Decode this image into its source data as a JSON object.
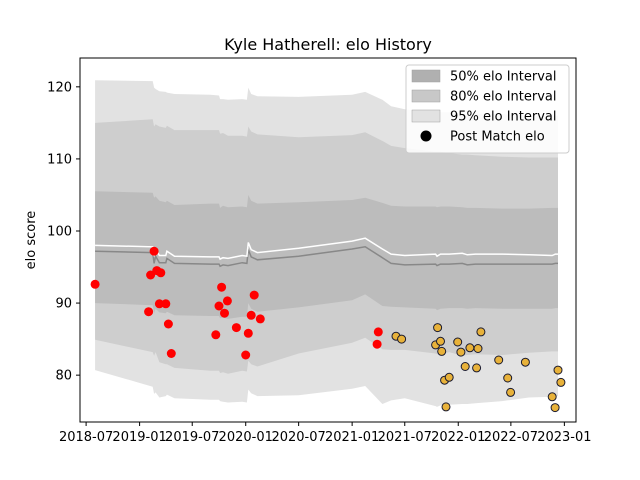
{
  "chart_data": {
    "type": "line",
    "title": "Kyle Hatherell: elo History",
    "xlabel": "",
    "ylabel": "elo score",
    "xlim": [
      "2018-06-10",
      "2023-02-10"
    ],
    "ylim": [
      73.5,
      124
    ],
    "x_ticks": [
      "2018-07",
      "2019-01",
      "2019-07",
      "2020-01",
      "2020-07",
      "2021-01",
      "2021-07",
      "2022-01",
      "2022-07",
      "2023-01"
    ],
    "y_ticks": [
      80,
      90,
      100,
      110,
      120
    ],
    "grid": false,
    "legend_position": "top-right",
    "legend": [
      {
        "label": "50% elo Interval",
        "swatch": "band",
        "color": "#b0b0b0"
      },
      {
        "label": "80% elo Interval",
        "swatch": "band",
        "color": "#c8c8c8"
      },
      {
        "label": "95% elo Interval",
        "swatch": "band",
        "color": "#e2e2e2"
      },
      {
        "label": "Post Match elo",
        "swatch": "dot",
        "color": "#000000"
      }
    ],
    "colors": {
      "band95": "#e2e2e2",
      "band80": "#cecece",
      "band50": "#bcbcbc",
      "mean_line": "#ffffff",
      "median_line": "#888888",
      "dot_early": "#ff0000",
      "dot_late": "#e8b23a",
      "dot_late_edge": "#1a1a2e"
    },
    "bands": {
      "x": [
        "2018-08-01",
        "2019-02-15",
        "2019-02-20",
        "2019-02-25",
        "2019-03-10",
        "2019-04-01",
        "2019-04-05",
        "2019-05-01",
        "2019-09-01",
        "2019-10-01",
        "2019-10-05",
        "2019-10-15",
        "2019-11-01",
        "2019-12-20",
        "2020-01-05",
        "2020-01-10",
        "2020-01-20",
        "2020-02-10",
        "2020-07-01",
        "2021-01-01",
        "2021-02-15",
        "2021-04-15",
        "2021-05-15",
        "2021-07-01",
        "2021-10-15",
        "2021-10-20",
        "2021-11-01",
        "2021-12-01",
        "2022-01-15",
        "2022-02-01",
        "2022-03-01",
        "2022-06-01",
        "2022-09-01",
        "2022-11-20",
        "2022-12-01",
        "2022-12-10"
      ],
      "median": [
        97.2,
        97.0,
        95.5,
        96.5,
        95.6,
        95.6,
        96.2,
        95.5,
        95.4,
        95.4,
        95.1,
        95.3,
        95.2,
        95.6,
        95.5,
        97.4,
        96.4,
        96.0,
        96.5,
        97.5,
        97.8,
        96.3,
        95.5,
        95.3,
        95.4,
        95.2,
        95.4,
        95.4,
        95.5,
        95.3,
        95.4,
        95.4,
        95.4,
        95.4,
        95.5,
        95.5
      ],
      "mean": [
        98.0,
        97.8,
        96.5,
        97.5,
        96.6,
        96.6,
        97.2,
        96.5,
        96.4,
        96.4,
        96.1,
        96.3,
        96.2,
        96.6,
        96.5,
        98.4,
        97.4,
        97.0,
        97.6,
        98.6,
        99.0,
        97.5,
        96.8,
        96.6,
        96.8,
        96.5,
        96.8,
        96.8,
        96.9,
        96.7,
        96.8,
        96.8,
        96.7,
        96.6,
        96.8,
        96.8
      ],
      "p50_hi": [
        105.5,
        105.3,
        104.6,
        104.8,
        104.2,
        104.0,
        104.2,
        103.6,
        103.8,
        103.8,
        103.2,
        103.5,
        103.3,
        103.4,
        103.3,
        105.0,
        104.2,
        103.8,
        104.0,
        104.3,
        104.6,
        103.9,
        103.5,
        103.4,
        103.4,
        103.3,
        103.4,
        103.4,
        103.3,
        103.2,
        103.2,
        103.1,
        103.1,
        103.2,
        103.2,
        103.2
      ],
      "p50_lo": [
        90.0,
        89.7,
        88.6,
        89.2,
        88.7,
        88.6,
        88.8,
        88.3,
        88.2,
        88.2,
        87.9,
        88.0,
        87.8,
        88.1,
        88.1,
        90.0,
        89.2,
        88.8,
        89.4,
        90.4,
        91.2,
        89.6,
        89.5,
        89.4,
        89.2,
        89.0,
        89.2,
        89.3,
        89.3,
        89.2,
        89.3,
        89.2,
        89.2,
        89.2,
        89.3,
        89.3
      ],
      "p80_hi": [
        115.0,
        115.5,
        114.5,
        114.8,
        114.5,
        114.3,
        114.6,
        114.0,
        114.0,
        114.0,
        113.5,
        113.6,
        113.2,
        113.2,
        113.1,
        114.5,
        113.8,
        113.4,
        113.0,
        113.3,
        113.7,
        112.5,
        111.8,
        111.5,
        111.0,
        111.0,
        111.0,
        110.8,
        110.6,
        110.6,
        110.5,
        110.3,
        110.2,
        110.2,
        110.2,
        110.2
      ],
      "p80_lo": [
        84.9,
        83.2,
        82.7,
        83.2,
        81.8,
        81.5,
        81.5,
        81.0,
        80.6,
        80.6,
        80.3,
        80.4,
        80.2,
        80.6,
        80.5,
        82.0,
        81.5,
        81.2,
        83.0,
        84.5,
        85.2,
        83.6,
        83.5,
        83.5,
        83.0,
        82.9,
        82.9,
        83.2,
        82.7,
        82.8,
        82.9,
        82.8,
        83.1,
        83.3,
        83.3,
        83.3
      ],
      "p95_hi": [
        120.9,
        120.8,
        119.9,
        119.7,
        119.4,
        119.3,
        119.2,
        119.0,
        118.9,
        118.8,
        118.3,
        118.3,
        118.2,
        118.3,
        118.2,
        119.9,
        119.0,
        118.7,
        118.6,
        118.9,
        119.3,
        118.2,
        117.3,
        116.9,
        116.3,
        116.3,
        116.5,
        116.5,
        116.0,
        116.0,
        116.3,
        116.2,
        116.0,
        116.0,
        116.0,
        116.0
      ],
      "p95_lo": [
        80.7,
        78.4,
        77.4,
        77.6,
        76.9,
        77.1,
        77.3,
        76.8,
        76.6,
        76.6,
        76.4,
        76.3,
        76.2,
        76.3,
        76.2,
        78.0,
        77.5,
        77.1,
        77.2,
        78.1,
        78.5,
        76.0,
        76.5,
        76.8,
        75.7,
        75.6,
        75.8,
        75.9,
        76.0,
        76.0,
        76.1,
        76.4,
        76.9,
        77.0,
        77.1,
        77.1
      ]
    },
    "points": [
      {
        "x": "2018-08-01",
        "y": 92.6,
        "group": "early"
      },
      {
        "x": "2019-02-01",
        "y": 88.8,
        "group": "early"
      },
      {
        "x": "2019-02-08",
        "y": 93.9,
        "group": "early"
      },
      {
        "x": "2019-02-20",
        "y": 97.2,
        "group": "early"
      },
      {
        "x": "2019-03-01",
        "y": 94.5,
        "group": "early"
      },
      {
        "x": "2019-03-10",
        "y": 89.9,
        "group": "early"
      },
      {
        "x": "2019-03-15",
        "y": 94.2,
        "group": "early"
      },
      {
        "x": "2019-04-01",
        "y": 89.9,
        "group": "early"
      },
      {
        "x": "2019-04-10",
        "y": 87.1,
        "group": "early"
      },
      {
        "x": "2019-04-20",
        "y": 83.0,
        "group": "early"
      },
      {
        "x": "2019-09-20",
        "y": 85.6,
        "group": "early"
      },
      {
        "x": "2019-10-01",
        "y": 89.6,
        "group": "early"
      },
      {
        "x": "2019-10-10",
        "y": 92.2,
        "group": "early"
      },
      {
        "x": "2019-10-20",
        "y": 88.6,
        "group": "early"
      },
      {
        "x": "2019-10-30",
        "y": 90.3,
        "group": "early"
      },
      {
        "x": "2019-11-30",
        "y": 86.6,
        "group": "early"
      },
      {
        "x": "2020-01-01",
        "y": 82.8,
        "group": "early"
      },
      {
        "x": "2020-01-10",
        "y": 85.8,
        "group": "early"
      },
      {
        "x": "2020-01-20",
        "y": 88.3,
        "group": "early"
      },
      {
        "x": "2020-01-30",
        "y": 91.1,
        "group": "early"
      },
      {
        "x": "2020-02-20",
        "y": 87.8,
        "group": "early"
      },
      {
        "x": "2021-04-01",
        "y": 86.0,
        "group": "early"
      },
      {
        "x": "2021-03-28",
        "y": 84.3,
        "group": "early"
      },
      {
        "x": "2021-06-01",
        "y": 85.4,
        "group": "late"
      },
      {
        "x": "2021-06-20",
        "y": 85.0,
        "group": "late"
      },
      {
        "x": "2021-10-15",
        "y": 84.2,
        "group": "late"
      },
      {
        "x": "2021-10-22",
        "y": 86.6,
        "group": "late"
      },
      {
        "x": "2021-11-01",
        "y": 84.7,
        "group": "late"
      },
      {
        "x": "2021-11-05",
        "y": 83.3,
        "group": "late"
      },
      {
        "x": "2021-11-15",
        "y": 79.3,
        "group": "late"
      },
      {
        "x": "2021-11-20",
        "y": 75.6,
        "group": "late"
      },
      {
        "x": "2021-12-01",
        "y": 79.7,
        "group": "late"
      },
      {
        "x": "2021-12-30",
        "y": 84.6,
        "group": "late"
      },
      {
        "x": "2022-01-10",
        "y": 83.2,
        "group": "late"
      },
      {
        "x": "2022-01-25",
        "y": 81.2,
        "group": "late"
      },
      {
        "x": "2022-02-10",
        "y": 83.8,
        "group": "late"
      },
      {
        "x": "2022-03-05",
        "y": 81.0,
        "group": "late"
      },
      {
        "x": "2022-03-10",
        "y": 83.7,
        "group": "late"
      },
      {
        "x": "2022-03-20",
        "y": 86.0,
        "group": "late"
      },
      {
        "x": "2022-05-20",
        "y": 82.1,
        "group": "late"
      },
      {
        "x": "2022-06-20",
        "y": 79.6,
        "group": "late"
      },
      {
        "x": "2022-06-30",
        "y": 77.6,
        "group": "late"
      },
      {
        "x": "2022-08-20",
        "y": 81.8,
        "group": "late"
      },
      {
        "x": "2022-11-20",
        "y": 77.0,
        "group": "late"
      },
      {
        "x": "2022-11-30",
        "y": 75.5,
        "group": "late"
      },
      {
        "x": "2022-12-10",
        "y": 80.7,
        "group": "late"
      },
      {
        "x": "2022-12-20",
        "y": 79.0,
        "group": "late"
      }
    ]
  }
}
